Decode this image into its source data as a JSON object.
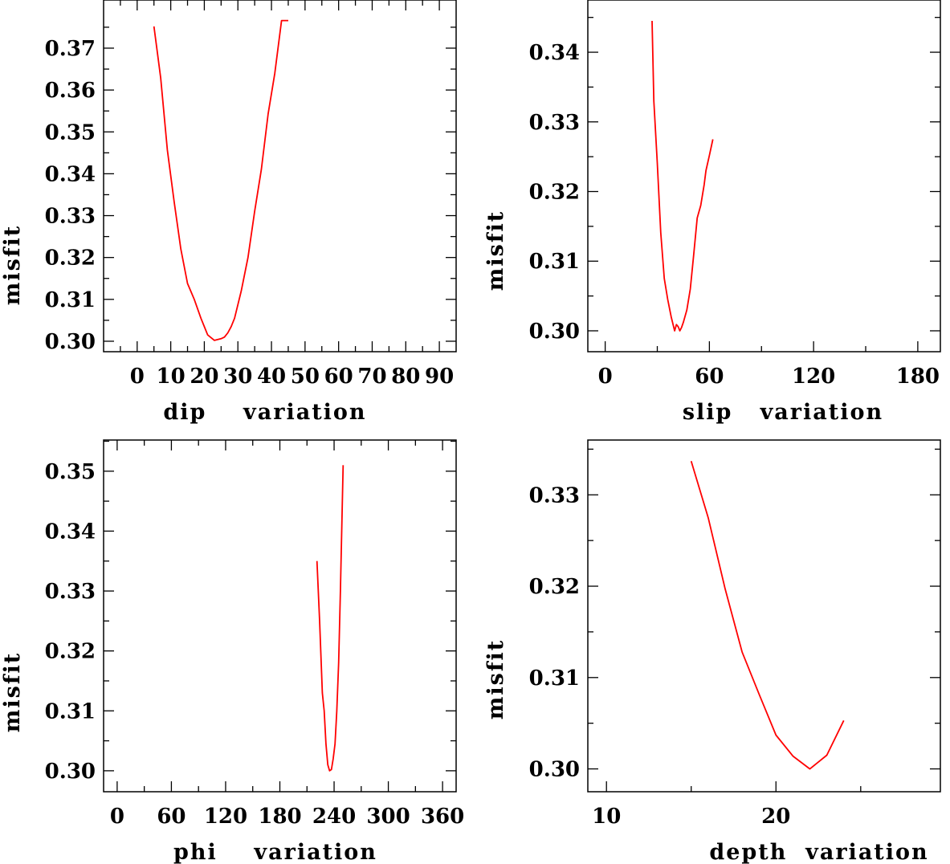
{
  "chart_data": [
    {
      "type": "line",
      "xlabel": "dip    variation",
      "ylabel": "misfit",
      "xlim": [
        -10,
        95
      ],
      "ylim": [
        0.2975,
        0.3815
      ],
      "xticks": [
        0,
        10,
        20,
        30,
        40,
        50,
        60,
        70,
        80,
        90
      ],
      "xtick_labels": [
        "0",
        "10",
        "20",
        "30",
        "40",
        "50",
        "60",
        "70",
        "80",
        "90"
      ],
      "yticks": [
        0.3,
        0.31,
        0.32,
        0.33,
        0.34,
        0.35,
        0.36,
        0.37
      ],
      "ytick_labels": [
        "0.30",
        "0.31",
        "0.32",
        "0.33",
        "0.34",
        "0.35",
        "0.36",
        "0.37"
      ],
      "grid": false,
      "series": [
        {
          "color": "#ff0000",
          "x": [
            5,
            7,
            9,
            11,
            13,
            15,
            17,
            19,
            21,
            23,
            25,
            26,
            27,
            28,
            29,
            31,
            33,
            35,
            37,
            39,
            41,
            43,
            45
          ],
          "y": [
            0.3752,
            0.3629,
            0.3457,
            0.3334,
            0.322,
            0.3138,
            0.31,
            0.3055,
            0.3015,
            0.3002,
            0.3006,
            0.301,
            0.302,
            0.3035,
            0.3055,
            0.312,
            0.32,
            0.331,
            0.3411,
            0.3543,
            0.364,
            0.3766,
            0.3766
          ]
        }
      ]
    },
    {
      "type": "line",
      "xlabel": "slip   variation",
      "ylabel": "misfit",
      "xlim": [
        -10,
        193
      ],
      "ylim": [
        0.297,
        0.3475
      ],
      "xticks": [
        0,
        60,
        120,
        180
      ],
      "xtick_labels": [
        "0",
        "60",
        "120",
        "180"
      ],
      "yticks": [
        0.3,
        0.31,
        0.32,
        0.33,
        0.34
      ],
      "ytick_labels": [
        "0.30",
        "0.31",
        "0.32",
        "0.33",
        "0.34"
      ],
      "grid": false,
      "series": [
        {
          "color": "#ff0000",
          "x": [
            27,
            28,
            30,
            32,
            34,
            36,
            38,
            40,
            41,
            42,
            43,
            44,
            45,
            47,
            49,
            51,
            53,
            55,
            57,
            58,
            60,
            62
          ],
          "y": [
            0.3445,
            0.333,
            0.3241,
            0.3141,
            0.3075,
            0.3045,
            0.302,
            0.3,
            0.3009,
            0.3006,
            0.3,
            0.3005,
            0.3012,
            0.303,
            0.306,
            0.311,
            0.3162,
            0.318,
            0.321,
            0.323,
            0.3252,
            0.3275
          ]
        }
      ]
    },
    {
      "type": "line",
      "xlabel": "phi    variation",
      "ylabel": "misfit",
      "xlim": [
        -15,
        375
      ],
      "ylim": [
        0.2965,
        0.3552
      ],
      "xticks": [
        0,
        60,
        120,
        180,
        240,
        300,
        360
      ],
      "xtick_labels": [
        "0",
        "60",
        "120",
        "180",
        "240",
        "300",
        "360"
      ],
      "yticks": [
        0.3,
        0.31,
        0.32,
        0.33,
        0.34,
        0.35
      ],
      "ytick_labels": [
        "0.30",
        "0.31",
        "0.32",
        "0.33",
        "0.34",
        "0.35"
      ],
      "grid": false,
      "series": [
        {
          "color": "#ff0000",
          "x": [
            221,
            224,
            227,
            229,
            231,
            233,
            235,
            237,
            239,
            241,
            243,
            245,
            247,
            250
          ],
          "y": [
            0.335,
            0.325,
            0.313,
            0.31,
            0.3045,
            0.301,
            0.3,
            0.3002,
            0.302,
            0.3045,
            0.31,
            0.318,
            0.33,
            0.351
          ]
        }
      ]
    },
    {
      "type": "line",
      "xlabel": "depth  variation",
      "ylabel": "misfit",
      "xlim": [
        8.9,
        29.7
      ],
      "ylim": [
        0.2975,
        0.336
      ],
      "xticks": [
        10,
        20
      ],
      "xtick_labels": [
        "10",
        "20"
      ],
      "yticks": [
        0.3,
        0.31,
        0.32,
        0.33
      ],
      "ytick_labels": [
        "0.30",
        "0.31",
        "0.32",
        "0.33"
      ],
      "grid": false,
      "series": [
        {
          "color": "#ff0000",
          "x": [
            15,
            16,
            17,
            18,
            19,
            20,
            21,
            22,
            23,
            24
          ],
          "y": [
            0.3337,
            0.3275,
            0.3197,
            0.3128,
            0.3082,
            0.3037,
            0.3014,
            0.3,
            0.3015,
            0.3053
          ]
        }
      ]
    }
  ]
}
